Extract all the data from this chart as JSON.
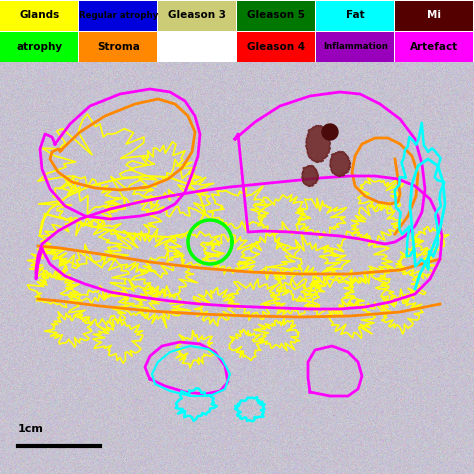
{
  "legend_row1": [
    {
      "label": "Glands",
      "color": "#FFFF00",
      "text_color": "#000000"
    },
    {
      "label": "Regular atrophy",
      "color": "#0000DD",
      "text_color": "#000000"
    },
    {
      "label": "Gleason 3",
      "color": "#CCCC77",
      "text_color": "#000000"
    },
    {
      "label": "Gleason 5",
      "color": "#007700",
      "text_color": "#000000"
    },
    {
      "label": "Fat",
      "color": "#00FFFF",
      "text_color": "#000000"
    },
    {
      "label": "Mi",
      "color": "#550000",
      "text_color": "#FFFFFF"
    }
  ],
  "legend_row2": [
    {
      "label": "atrophy",
      "color": "#00FF00",
      "text_color": "#000000"
    },
    {
      "label": "Stroma",
      "color": "#FF8800",
      "text_color": "#000000"
    },
    {
      "label": null,
      "color": null,
      "text_color": null
    },
    {
      "label": "Gleason 4",
      "color": "#FF0000",
      "text_color": "#000000"
    },
    {
      "label": "Inflammation",
      "color": "#9900BB",
      "text_color": "#000000"
    },
    {
      "label": "Artefact",
      "color": "#FF00FF",
      "text_color": "#000000"
    }
  ],
  "legend_bg": "#FFFFFF",
  "tissue_bg": "#C8C0CC",
  "outer_bg": "#C0C0C0",
  "scalebar_text": "1cm"
}
